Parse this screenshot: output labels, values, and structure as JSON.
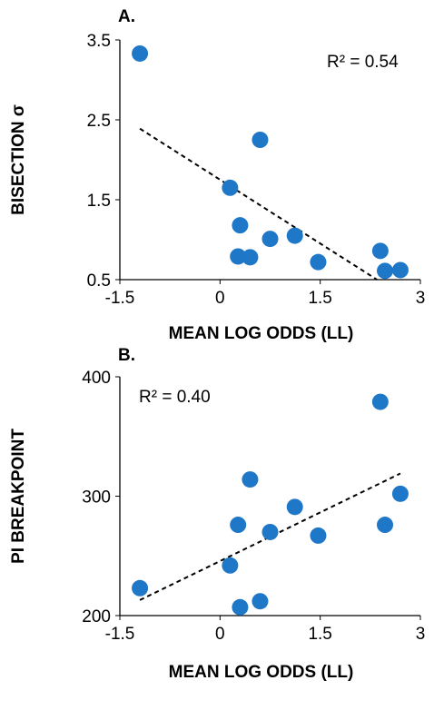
{
  "chart_data": [
    {
      "panel_label": "A.",
      "type": "scatter",
      "xlabel": "MEAN LOG ODDS (LL)",
      "ylabel": "BISECTION σ",
      "xlim": [
        -1.5,
        3
      ],
      "ylim": [
        0.5,
        3.5
      ],
      "x_ticks": [
        "-1.5",
        "0",
        "1.5",
        "3"
      ],
      "y_ticks": [
        "0.5",
        "1.5",
        "2.5",
        "3.5"
      ],
      "annotation": "R² = 0.54",
      "points": [
        {
          "x": -1.2,
          "y": 3.33
        },
        {
          "x": 0.6,
          "y": 2.25
        },
        {
          "x": 0.15,
          "y": 1.65
        },
        {
          "x": 0.3,
          "y": 1.18
        },
        {
          "x": 1.12,
          "y": 1.05
        },
        {
          "x": 0.75,
          "y": 1.01
        },
        {
          "x": 0.27,
          "y": 0.79
        },
        {
          "x": 0.45,
          "y": 0.78
        },
        {
          "x": 1.47,
          "y": 0.72
        },
        {
          "x": 2.4,
          "y": 0.86
        },
        {
          "x": 2.47,
          "y": 0.61
        },
        {
          "x": 2.7,
          "y": 0.62
        }
      ],
      "trendline": {
        "x": [
          -1.2,
          2.35
        ],
        "y": [
          2.39,
          0.5
        ]
      },
      "marker_color": "#1f77c8",
      "grid": false
    },
    {
      "panel_label": "B.",
      "type": "scatter",
      "xlabel": "MEAN LOG ODDS (LL)",
      "ylabel": "PI BREAKPOINT",
      "xlim": [
        -1.5,
        3
      ],
      "ylim": [
        200,
        400
      ],
      "x_ticks": [
        "-1.5",
        "0",
        "1.5",
        "3"
      ],
      "y_ticks": [
        "200",
        "300",
        "400"
      ],
      "annotation": "R² = 0.40",
      "points": [
        {
          "x": -1.2,
          "y": 223
        },
        {
          "x": 0.3,
          "y": 207
        },
        {
          "x": 0.6,
          "y": 212
        },
        {
          "x": 0.15,
          "y": 242
        },
        {
          "x": 0.27,
          "y": 276
        },
        {
          "x": 0.45,
          "y": 314
        },
        {
          "x": 0.75,
          "y": 270
        },
        {
          "x": 1.12,
          "y": 291
        },
        {
          "x": 1.47,
          "y": 267
        },
        {
          "x": 2.4,
          "y": 379
        },
        {
          "x": 2.47,
          "y": 276
        },
        {
          "x": 2.7,
          "y": 302
        }
      ],
      "trendline": {
        "x": [
          -1.2,
          2.7
        ],
        "y": [
          213,
          319
        ]
      },
      "marker_color": "#1f77c8",
      "grid": false
    }
  ]
}
